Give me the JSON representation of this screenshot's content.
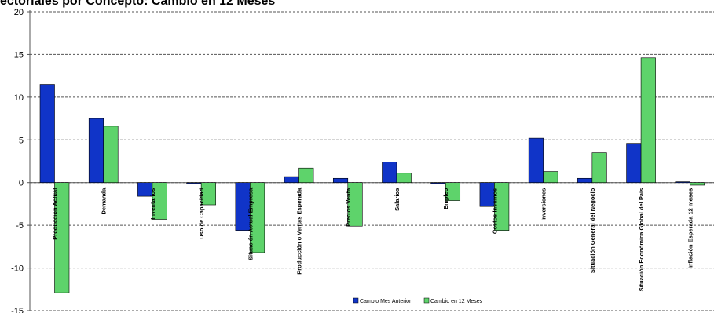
{
  "title": "ectoriales por Concepto: Cambio en 12 Meses",
  "colors": {
    "series1": "#1034c8",
    "series2": "#5ed36b",
    "grid": "#555555"
  },
  "chart_data": {
    "type": "bar",
    "title": "ectoriales por Concepto: Cambio en 12 Meses",
    "xlabel": "",
    "ylabel": "",
    "ylim": [
      -15,
      20
    ],
    "yticks": [
      -15,
      -10,
      -5,
      0,
      5,
      10,
      15,
      20
    ],
    "grid": true,
    "legend_position": "bottom-center",
    "categories": [
      "Producción Actual",
      "Demanda",
      "Inventarios",
      "Uso de Capacidad",
      "Situación Actual Empresa",
      "Producción o Ventas Esperada",
      "Precios Venta",
      "Salarios",
      "Empleo",
      "Costos Insumos",
      "Inversiones",
      "Situación General del Negocio",
      "Situación Económica Global del País",
      "Inflación Esperada 12 meses"
    ],
    "series": [
      {
        "name": "Cambio Mes Anterior",
        "values": [
          11.5,
          7.5,
          -1.6,
          -0.1,
          -5.6,
          0.7,
          0.5,
          2.4,
          -0.1,
          -2.8,
          5.2,
          0.5,
          4.6,
          0.1
        ]
      },
      {
        "name": "Cambio en 12 Meses",
        "values": [
          -12.9,
          6.6,
          -4.3,
          -2.6,
          -8.2,
          1.7,
          -5.1,
          1.1,
          -2.1,
          -5.6,
          1.3,
          3.5,
          14.6,
          -0.3
        ]
      }
    ]
  }
}
